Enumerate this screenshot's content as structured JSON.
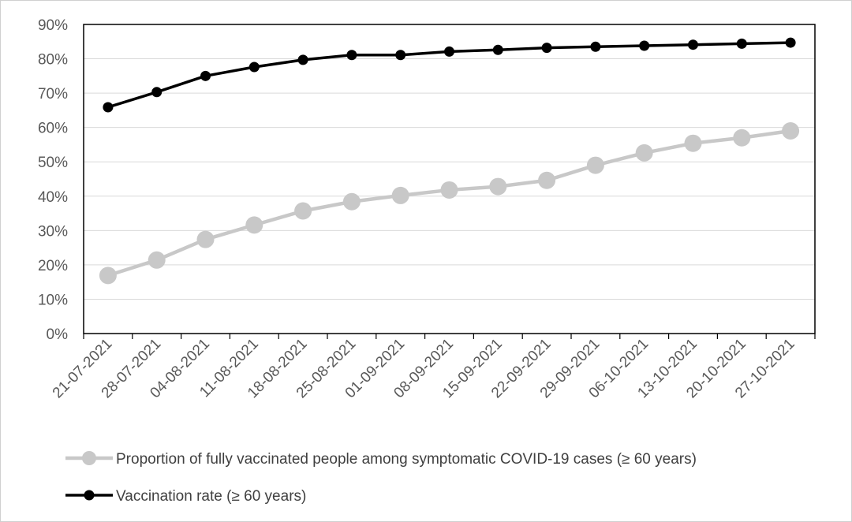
{
  "chart_data": {
    "type": "line",
    "title": "",
    "xlabel": "",
    "ylabel": "",
    "ylim": [
      0,
      90
    ],
    "y_ticks": [
      "0%",
      "10%",
      "20%",
      "30%",
      "40%",
      "50%",
      "60%",
      "70%",
      "80%",
      "90%"
    ],
    "categories": [
      "21-07-2021",
      "28-07-2021",
      "04-08-2021",
      "11-08-2021",
      "18-08-2021",
      "25-08-2021",
      "01-09-2021",
      "08-09-2021",
      "15-09-2021",
      "22-09-2021",
      "29-09-2021",
      "06-10-2021",
      "13-10-2021",
      "20-10-2021",
      "27-10-2021"
    ],
    "grid": true,
    "legend_position": "bottom",
    "series": [
      {
        "name": "Proportion of fully vaccinated people among symptomatic COVID-19 cases (≥ 60 years)",
        "color": "#c8c8c8",
        "values": [
          16.9,
          21.4,
          27.4,
          31.6,
          35.7,
          38.4,
          40.2,
          41.8,
          42.8,
          44.6,
          49.0,
          52.6,
          55.4,
          57.0,
          59.0
        ]
      },
      {
        "name": "Vaccination rate (≥ 60 years)",
        "color": "#000000",
        "values": [
          65.9,
          70.3,
          75.0,
          77.6,
          79.7,
          81.1,
          81.1,
          82.1,
          82.6,
          83.2,
          83.5,
          83.8,
          84.1,
          84.4,
          84.7
        ]
      }
    ]
  }
}
